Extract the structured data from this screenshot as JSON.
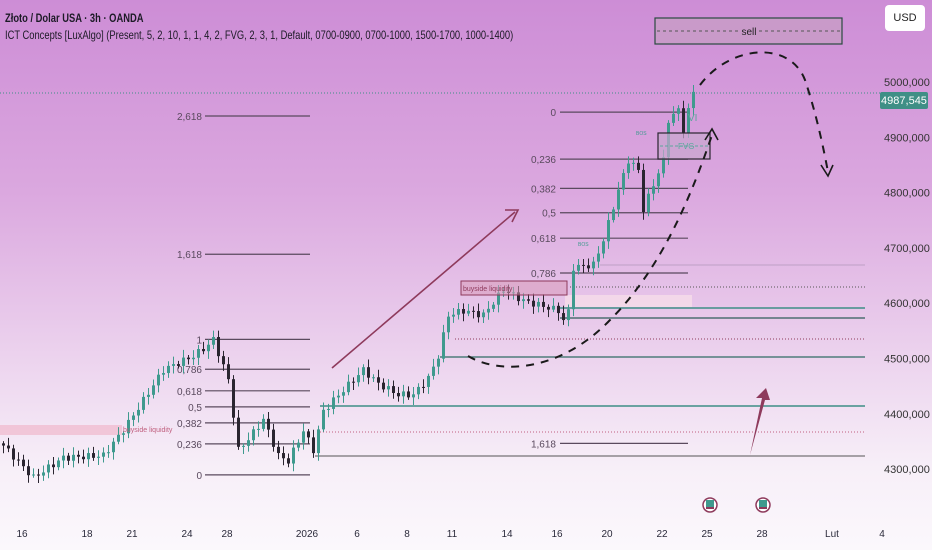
{
  "header": {
    "title": "Złoto / Dolar USA · 3h · OANDA",
    "indicator": "ICT Concepts [LuxAlgo] (Present, 5, 2, 10, 1, 1, 4, 2, FVG, 2, 3, 1, Default, 0700-0900, 0700-1000, 1500-1700, 1000-1400)"
  },
  "currency_button": "USD",
  "last_price_label": "4987,545",
  "colors": {
    "up": "#3f9a8e",
    "down": "#2a2530",
    "accent": "#8e3a5c",
    "price_label": "#3f8f86"
  },
  "chart_data": {
    "type": "candlestick",
    "symbol": "XAUUSD",
    "timeframe": "3h",
    "ylim": [
      4.25,
      5.08
    ],
    "y_ticks": [
      {
        "value": 5.0,
        "label": "5000,000"
      },
      {
        "value": 4.9,
        "label": "4900,000"
      },
      {
        "value": 4.8,
        "label": "4800,000"
      },
      {
        "value": 4.7,
        "label": "4700,000"
      },
      {
        "value": 4.6,
        "label": "4600,000"
      },
      {
        "value": 4.5,
        "label": "4500,000"
      },
      {
        "value": 4.4,
        "label": "4400,000"
      },
      {
        "value": 4.3,
        "label": "4300,000"
      }
    ],
    "x_ticks": [
      {
        "index": 2,
        "label": "16"
      },
      {
        "index": 15,
        "label": "18"
      },
      {
        "index": 24,
        "label": "21"
      },
      {
        "index": 35,
        "label": "24"
      },
      {
        "index": 43,
        "label": "28"
      },
      {
        "index": 59,
        "label": "2026"
      },
      {
        "index": 69,
        "label": "6"
      },
      {
        "index": 79,
        "label": "8"
      },
      {
        "index": 88,
        "label": "11"
      },
      {
        "index": 99,
        "label": "14"
      },
      {
        "index": 109,
        "label": "16"
      },
      {
        "index": 119,
        "label": "20"
      },
      {
        "index": 130,
        "label": "22"
      },
      {
        "index": 139,
        "label": "25"
      },
      {
        "index": 150,
        "label": "28"
      },
      {
        "index": 164,
        "label": "Lut"
      },
      {
        "index": 174,
        "label": "4"
      }
    ],
    "price_waypoints": [
      [
        0,
        4.348
      ],
      [
        6,
        4.29
      ],
      [
        12,
        4.326
      ],
      [
        20,
        4.33
      ],
      [
        24,
        4.376
      ],
      [
        28,
        4.43
      ],
      [
        32,
        4.485
      ],
      [
        38,
        4.51
      ],
      [
        41,
        4.53
      ],
      [
        42,
        4.54
      ],
      [
        45,
        4.467
      ],
      [
        47,
        4.34
      ],
      [
        49,
        4.36
      ],
      [
        52,
        4.395
      ],
      [
        55,
        4.33
      ],
      [
        57,
        4.32
      ],
      [
        60,
        4.375
      ],
      [
        62,
        4.34
      ],
      [
        64,
        4.41
      ],
      [
        66,
        4.43
      ],
      [
        72,
        4.485
      ],
      [
        75,
        4.46
      ],
      [
        79,
        4.44
      ],
      [
        82,
        4.44
      ],
      [
        85,
        4.47
      ],
      [
        87,
        4.51
      ],
      [
        89,
        4.584
      ],
      [
        92,
        4.592
      ],
      [
        96,
        4.584
      ],
      [
        100,
        4.63
      ],
      [
        104,
        4.61
      ],
      [
        108,
        4.6
      ],
      [
        111,
        4.592
      ],
      [
        112,
        4.575
      ],
      [
        113,
        4.59
      ],
      [
        114,
        4.67
      ],
      [
        118,
        4.675
      ],
      [
        120,
        4.72
      ],
      [
        123,
        4.81
      ],
      [
        125,
        4.864
      ],
      [
        127,
        4.846
      ],
      [
        128,
        4.775
      ],
      [
        130,
        4.82
      ],
      [
        132,
        4.864
      ],
      [
        133,
        4.937
      ],
      [
        135,
        4.955
      ],
      [
        136,
        4.92
      ],
      [
        138,
        4.987
      ]
    ],
    "last_price": 4987.545,
    "fib_left": [
      {
        "level": "1",
        "price": 4.54
      },
      {
        "level": "0,786",
        "price": 4.486
      },
      {
        "level": "0,618",
        "price": 4.447
      },
      {
        "level": "0,5",
        "price": 4.418
      },
      {
        "level": "0,382",
        "price": 4.389
      },
      {
        "level": "0,236",
        "price": 4.351
      },
      {
        "level": "0",
        "price": 4.295
      },
      {
        "level": "1,618",
        "price": 4.694
      },
      {
        "level": "2,618",
        "price": 4.944
      }
    ],
    "fib_right": [
      {
        "level": "0",
        "price": 4.951
      },
      {
        "level": "0,236",
        "price": 4.866
      },
      {
        "level": "0,382",
        "price": 4.813
      },
      {
        "level": "0,5",
        "price": 4.769
      },
      {
        "level": "0,618",
        "price": 4.723
      },
      {
        "level": "0,786",
        "price": 4.66
      },
      {
        "level": "1,618",
        "price": 4.352
      }
    ],
    "annotations": {
      "sell": "sell",
      "fvg": "FVG",
      "vi": "VI",
      "bos": "BOS",
      "buyside_liquidity": "buyside liquidity"
    }
  }
}
